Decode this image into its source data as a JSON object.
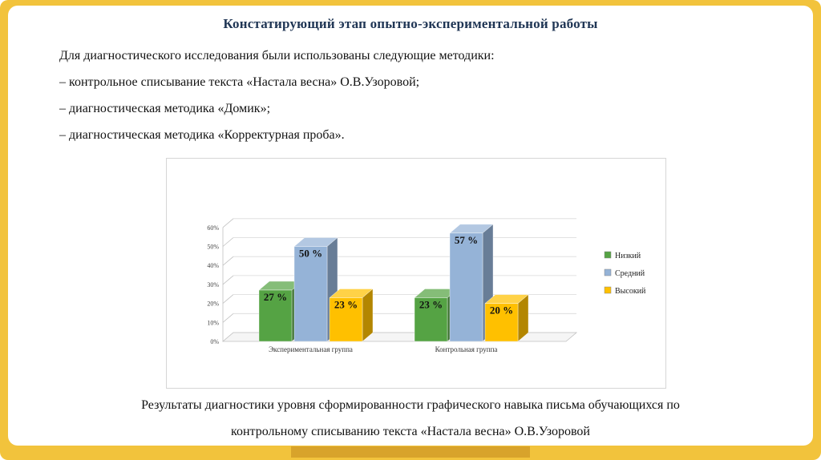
{
  "slide": {
    "title": "Констатирующий этап опытно-экспериментальной работы",
    "body_lines": [
      "Для диагностического исследования были использованы следующие методики:",
      "– контрольное списывание текста «Настала весна» О.В.Узоровой;",
      "– диагностическая методика «Домик»;",
      "– диагностическая методика «Корректурная проба»."
    ],
    "caption_lines": [
      "Результаты диагностики уровня сформированности графического навыка письма обучающихся по",
      "контрольному списыванию текста «Настала весна» О.В.Узоровой"
    ]
  },
  "colors": {
    "frame": "#F2C33C",
    "frame_accent": "#D8A32B",
    "title": "#203655",
    "gridline": "#d9d9d9"
  },
  "chart_data": {
    "type": "bar",
    "style": "3d-clustered-column",
    "title": "",
    "xlabel": "",
    "ylabel": "",
    "categories": [
      "Экспериментальная группа",
      "Контрольная группа"
    ],
    "series": [
      {
        "name": "Низкий",
        "color": "#55A344",
        "values": [
          27,
          23
        ]
      },
      {
        "name": "Средний",
        "color": "#95B3D7",
        "values": [
          50,
          57
        ]
      },
      {
        "name": "Высокий",
        "color": "#FFC000",
        "values": [
          23,
          20
        ]
      }
    ],
    "data_labels": [
      [
        "27 %",
        "50 %",
        "23 %"
      ],
      [
        "23 %",
        "57 %",
        "20 %"
      ]
    ],
    "y_ticks": [
      "0%",
      "10%",
      "20%",
      "30%",
      "40%",
      "50%",
      "60%"
    ],
    "ylim": [
      0,
      60
    ],
    "grid": true,
    "legend_position": "right"
  }
}
